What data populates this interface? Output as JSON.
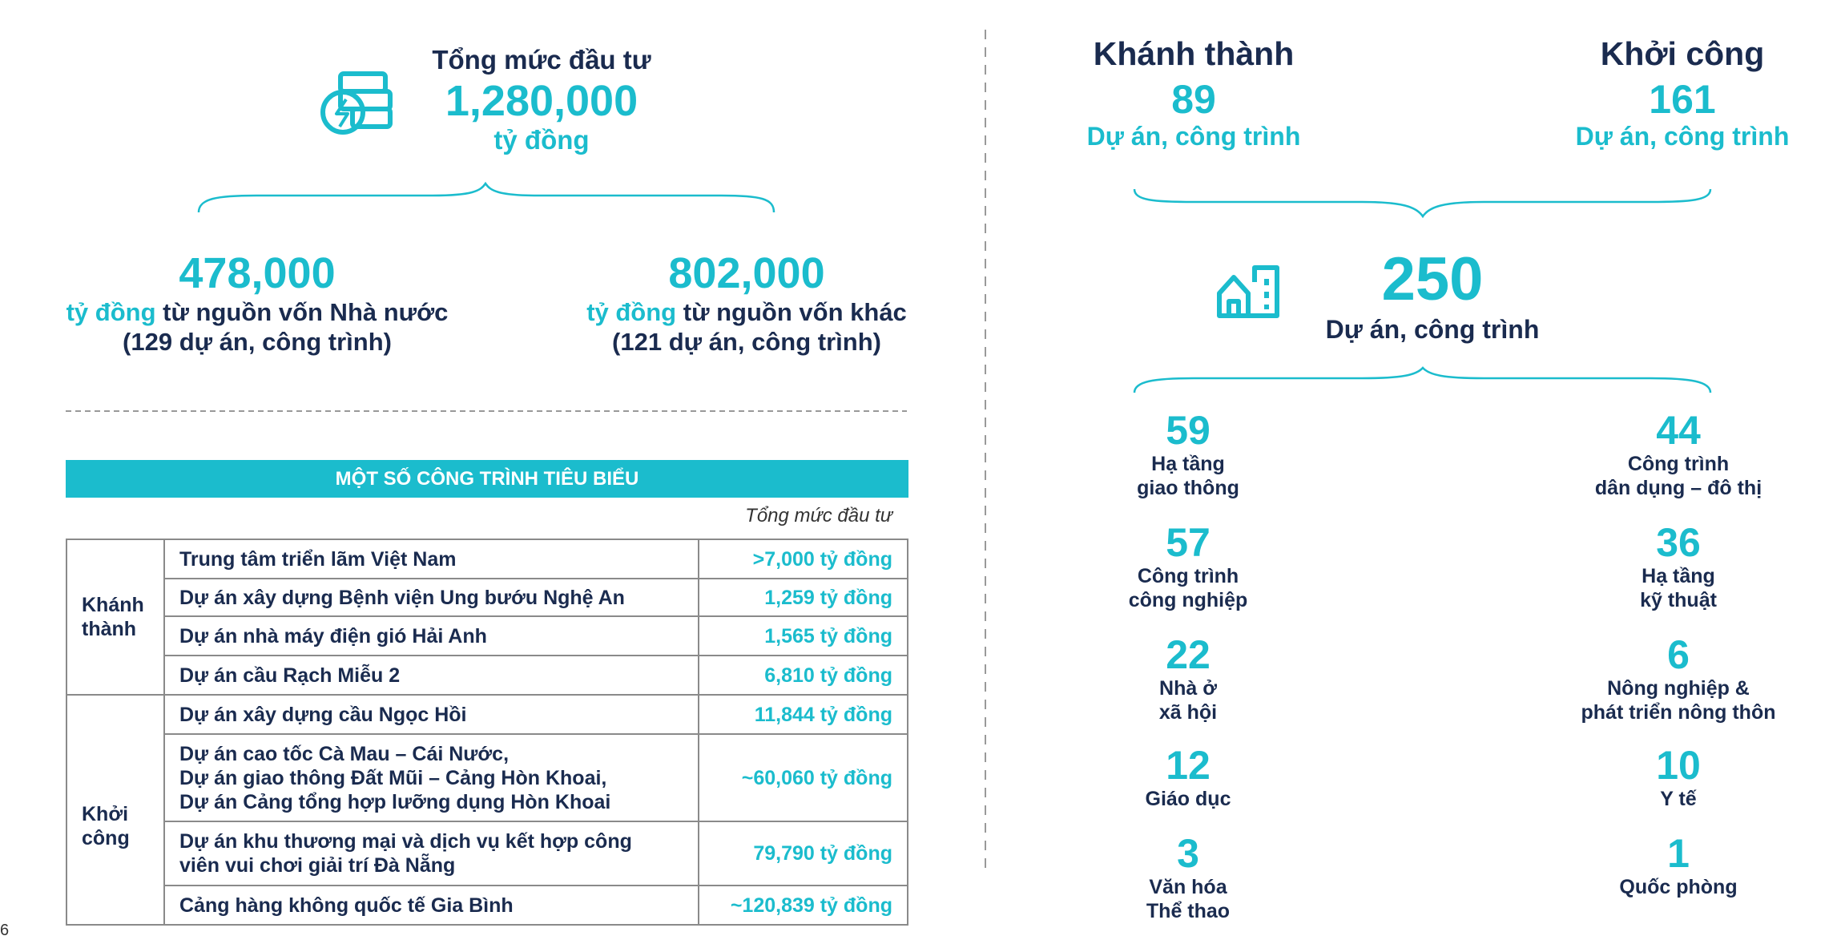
{
  "colors": {
    "accent": "#1bbccd",
    "text": "#1a2b4f"
  },
  "investment": {
    "title": "Tổng mức đầu tư",
    "total": "1,280,000",
    "unit": "tỷ đồng",
    "icon": "coins-lightning-icon",
    "state": {
      "value": "478,000",
      "unit": "tỷ đồng",
      "text": "từ nguồn vốn Nhà nước",
      "note": "(129 dự án, công trình)"
    },
    "other": {
      "value": "802,000",
      "unit": "tỷ đồng",
      "text": "từ nguồn vốn khác",
      "note": "(121 dự án, công trình)"
    }
  },
  "table": {
    "title": "MỘT SỐ CÔNG TRÌNH TIÊU BIỂU",
    "column_caption": "Tổng mức đầu tư",
    "groups": [
      {
        "label": "Khánh thành",
        "rows": [
          {
            "name": "Trung tâm triển lãm Việt Nam",
            "value": ">7,000 tỷ đồng"
          },
          {
            "name": "Dự án xây dựng Bệnh viện Ung bướu Nghệ An",
            "value": "1,259 tỷ đồng"
          },
          {
            "name": "Dự án nhà máy điện gió Hải Anh",
            "value": "1,565 tỷ đồng"
          },
          {
            "name": "Dự án cầu Rạch Miễu 2",
            "value": "6,810 tỷ đồng"
          }
        ]
      },
      {
        "label": "Khởi công",
        "rows": [
          {
            "name": "Dự án xây dựng cầu Ngọc Hồi",
            "value": "11,844 tỷ đồng"
          },
          {
            "name": "Dự án cao tốc Cà Mau – Cái Nước,\nDự án giao thông Đất Mũi – Cảng Hòn Khoai,\nDự án Cảng tổng hợp lưỡng dụng Hòn Khoai",
            "value": "~60,060 tỷ đồng"
          },
          {
            "name": "Dự án khu thương mại và dịch vụ kết hợp công\nviên vui chơi giải trí Đà Nẵng",
            "value": "79,790 tỷ đồng"
          },
          {
            "name": "Cảng hàng không quốc tế Gia Bình",
            "value": "~120,839 tỷ đồng"
          }
        ]
      }
    ]
  },
  "projects": {
    "completed": {
      "title": "Khánh thành",
      "count": "89",
      "unit": "Dự án, công trình"
    },
    "started": {
      "title": "Khởi công",
      "count": "161",
      "unit": "Dự án, công trình"
    },
    "total": {
      "count": "250",
      "unit": "Dự án, công trình",
      "icon": "building-icon"
    },
    "categories": [
      {
        "count": "59",
        "label": "Hạ tầng\ngiao thông"
      },
      {
        "count": "44",
        "label": "Công trình\ndân dụng – đô thị"
      },
      {
        "count": "57",
        "label": "Công trình\ncông nghiệp"
      },
      {
        "count": "36",
        "label": "Hạ tầng\nkỹ thuật"
      },
      {
        "count": "22",
        "label": "Nhà ở\nxã hội"
      },
      {
        "count": "6",
        "label": "Nông nghiệp &\nphát triển nông thôn"
      },
      {
        "count": "12",
        "label": "Giáo dục"
      },
      {
        "count": "10",
        "label": "Y tế"
      },
      {
        "count": "3",
        "label": "Văn hóa\nThể thao"
      },
      {
        "count": "1",
        "label": "Quốc phòng"
      }
    ]
  },
  "page_number": "6"
}
